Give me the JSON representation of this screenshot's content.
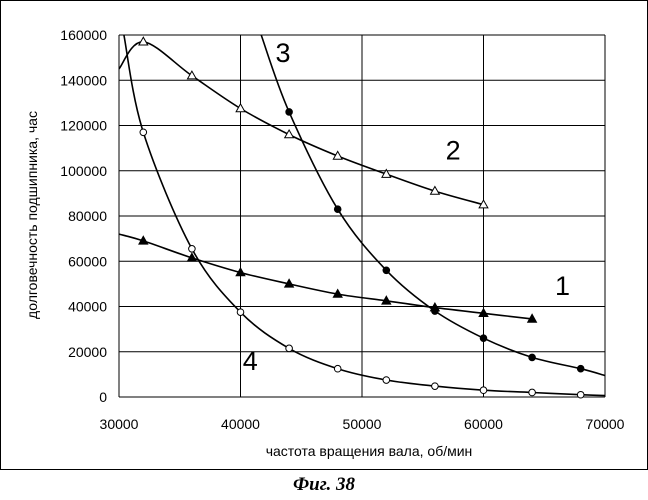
{
  "caption": "Фиг. 38",
  "chart_data": {
    "type": "line",
    "title": "",
    "xlabel": "частота вращения вала, об/мин",
    "ylabel": "долговечность подшипника, час",
    "xlim": [
      30000,
      70000
    ],
    "ylim": [
      0,
      160000
    ],
    "x_ticks": [
      30000,
      40000,
      50000,
      60000,
      70000
    ],
    "y_ticks": [
      0,
      20000,
      40000,
      60000,
      80000,
      100000,
      120000,
      140000,
      160000
    ],
    "grid": true,
    "legend": "none",
    "series": [
      {
        "label": "1",
        "marker": "filled-triangle",
        "points": [
          [
            32000,
            69000
          ],
          [
            36000,
            61500
          ],
          [
            40000,
            55000
          ],
          [
            44000,
            50000
          ],
          [
            48000,
            45500
          ],
          [
            52000,
            42500
          ],
          [
            56000,
            39500
          ],
          [
            60000,
            37000
          ],
          [
            64000,
            34500
          ]
        ],
        "line_extension_start": [
          30000,
          72000
        ]
      },
      {
        "label": "2",
        "marker": "open-triangle",
        "points": [
          [
            32000,
            157000
          ],
          [
            36000,
            142000
          ],
          [
            40000,
            127500
          ],
          [
            44000,
            116000
          ],
          [
            48000,
            106500
          ],
          [
            52000,
            98500
          ],
          [
            56000,
            91000
          ],
          [
            60000,
            85000
          ]
        ],
        "line_extension_start": [
          30000,
          145000
        ]
      },
      {
        "label": "3",
        "marker": "filled-circle",
        "points": [
          [
            44000,
            126000
          ],
          [
            48000,
            83000
          ],
          [
            52000,
            56000
          ],
          [
            56000,
            38000
          ],
          [
            60000,
            26000
          ],
          [
            64000,
            17500
          ],
          [
            68000,
            12500
          ]
        ],
        "line_extension_start": [
          41700,
          160000
        ],
        "line_extension_end": [
          70000,
          9500
        ]
      },
      {
        "label": "4",
        "marker": "open-circle",
        "points": [
          [
            32000,
            117000
          ],
          [
            36000,
            65500
          ],
          [
            40000,
            37500
          ],
          [
            44000,
            21500
          ],
          [
            48000,
            12500
          ],
          [
            52000,
            7500
          ],
          [
            56000,
            4800
          ],
          [
            60000,
            3000
          ],
          [
            64000,
            2000
          ],
          [
            68000,
            1000
          ]
        ],
        "line_extension_start": [
          30400,
          160000
        ],
        "line_extension_end": [
          70000,
          600
        ]
      }
    ],
    "curve_labels": [
      {
        "text": "1",
        "x": 66500,
        "y": 45000
      },
      {
        "text": "2",
        "x": 57500,
        "y": 105000
      },
      {
        "text": "3",
        "x": 43500,
        "y": 148000
      },
      {
        "text": "4",
        "x": 40800,
        "y": 12000
      }
    ]
  }
}
